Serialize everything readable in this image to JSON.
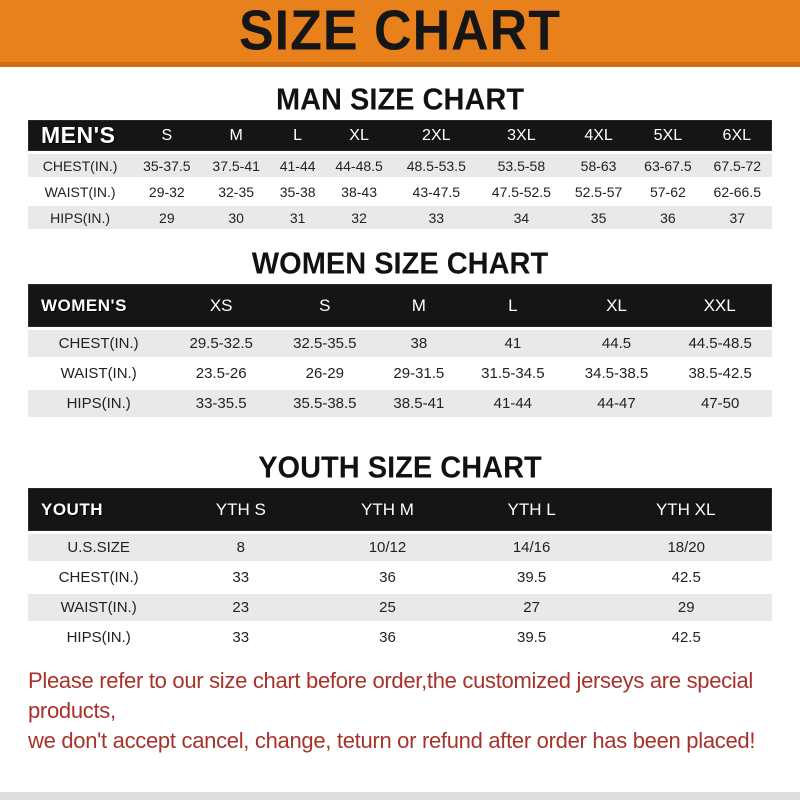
{
  "banner": {
    "title": "SIZE CHART"
  },
  "sections": [
    {
      "title": "MAN SIZE CHART",
      "header_label": "MEN'S",
      "columns": [
        "S",
        "M",
        "L",
        "XL",
        "2XL",
        "3XL",
        "4XL",
        "5XL",
        "6XL"
      ],
      "rows": [
        {
          "label": "CHEST(IN.)",
          "values": [
            "35-37.5",
            "37.5-41",
            "41-44",
            "44-48.5",
            "48.5-53.5",
            "53.5-58",
            "58-63",
            "63-67.5",
            "67.5-72"
          ]
        },
        {
          "label": "WAIST(IN.)",
          "values": [
            "29-32",
            "32-35",
            "35-38",
            "38-43",
            "43-47.5",
            "47.5-52.5",
            "52.5-57",
            "57-62",
            "62-66.5"
          ]
        },
        {
          "label": "HIPS(IN.)",
          "values": [
            "29",
            "30",
            "31",
            "32",
            "33",
            "34",
            "35",
            "36",
            "37"
          ]
        }
      ]
    },
    {
      "title": "WOMEN SIZE CHART",
      "header_label": "WOMEN'S",
      "columns": [
        "XS",
        "S",
        "M",
        "L",
        "XL",
        "XXL"
      ],
      "rows": [
        {
          "label": "CHEST(IN.)",
          "values": [
            "29.5-32.5",
            "32.5-35.5",
            "38",
            "41",
            "44.5",
            "44.5-48.5"
          ]
        },
        {
          "label": "WAIST(IN.)",
          "values": [
            "23.5-26",
            "26-29",
            "29-31.5",
            "31.5-34.5",
            "34.5-38.5",
            "38.5-42.5"
          ]
        },
        {
          "label": "HIPS(IN.)",
          "values": [
            "33-35.5",
            "35.5-38.5",
            "38.5-41",
            "41-44",
            "44-47",
            "47-50"
          ]
        }
      ]
    },
    {
      "title": "YOUTH SIZE CHART",
      "header_label": "YOUTH",
      "columns": [
        "YTH S",
        "YTH M",
        "YTH L",
        "YTH XL"
      ],
      "rows": [
        {
          "label": "U.S.SIZE",
          "values": [
            "8",
            "10/12",
            "14/16",
            "18/20"
          ]
        },
        {
          "label": "CHEST(IN.)",
          "values": [
            "33",
            "36",
            "39.5",
            "42.5"
          ]
        },
        {
          "label": "WAIST(IN.)",
          "values": [
            "23",
            "25",
            "27",
            "29"
          ]
        },
        {
          "label": "HIPS(IN.)",
          "values": [
            "33",
            "36",
            "39.5",
            "42.5"
          ]
        }
      ]
    }
  ],
  "footer": {
    "line1": "Please refer to our size chart before order,the customized jerseys are special products,",
    "line2": "we don't accept cancel, change, teturn or refund after order has been placed!"
  },
  "colors": {
    "banner_bg": "#E8811B",
    "banner_edge": "#CF6D10",
    "header_bar": "#151515",
    "row_alt": "#E9E9E9",
    "footer_text": "#A8322A",
    "bottom_bar": "#DEDEDE"
  }
}
